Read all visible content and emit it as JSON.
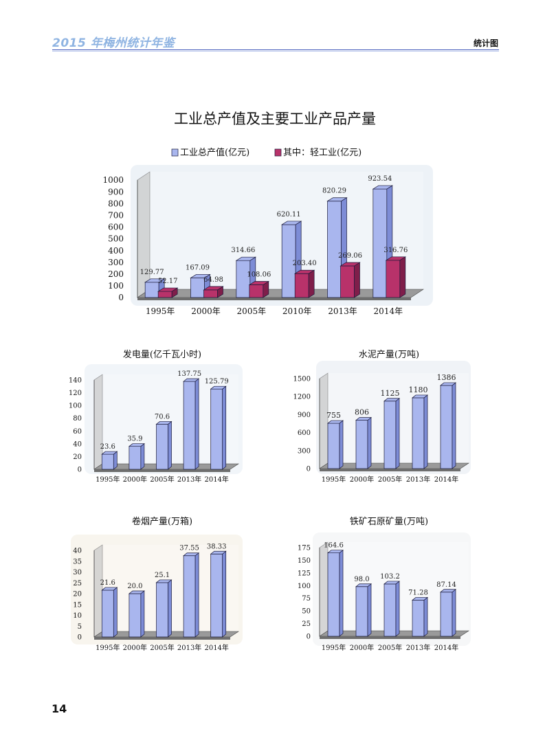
{
  "header": {
    "yearbook_title": "2015 年梅州统计年鉴",
    "section": "统计图"
  },
  "page_number": "14",
  "colors": {
    "blue_bar": "#a9b6ee",
    "blue_bar_dark": "#7d8cd6",
    "red_bar": "#b8326a",
    "red_bar_dark": "#7f1e4a",
    "header_accent": "#8fb4e2"
  },
  "chart_data": [
    {
      "id": "industry",
      "type": "bar",
      "title": "工业总产值及主要工业产品产量",
      "categories": [
        "1995年",
        "2000年",
        "2005年",
        "2010年",
        "2013年",
        "2014年"
      ],
      "series": [
        {
          "name": "工业总产值(亿元)",
          "values": [
            129.77,
            167.09,
            314.66,
            620.11,
            820.29,
            923.54
          ],
          "labels": [
            "129.77",
            "167.09",
            "314.66",
            "620.11",
            "820.29",
            "923.54"
          ]
        },
        {
          "name": "其中：轻工业(亿元)",
          "values": [
            52.17,
            64.98,
            108.06,
            203.4,
            269.06,
            316.76
          ],
          "labels": [
            "52.17",
            "64.98",
            "108.06",
            "203.40",
            "269.06",
            "316.76"
          ]
        }
      ],
      "ylim": [
        0,
        1000
      ],
      "yticks": [
        "0",
        "100",
        "200",
        "300",
        "400",
        "500",
        "600",
        "700",
        "800",
        "900",
        "1000"
      ],
      "legend": "top"
    },
    {
      "id": "electricity",
      "type": "bar",
      "title": "发电量(亿千瓦小时)",
      "categories": [
        "1995年",
        "2000年",
        "2005年",
        "2013年",
        "2014年"
      ],
      "series": [
        {
          "values": [
            23.6,
            35.9,
            70.6,
            137.75,
            125.79
          ],
          "labels": [
            "23.6",
            "35.9",
            "70.6",
            "137.75",
            "125.79"
          ]
        }
      ],
      "ylim": [
        0,
        140
      ],
      "yticks": [
        "0",
        "20",
        "40",
        "60",
        "80",
        "100",
        "120",
        "140"
      ]
    },
    {
      "id": "cement",
      "type": "bar",
      "title": "水泥产量(万吨)",
      "categories": [
        "1995年",
        "2000年",
        "2005年",
        "2013年",
        "2014年"
      ],
      "series": [
        {
          "values": [
            755,
            806,
            1125,
            1180,
            1386
          ],
          "labels": [
            "755",
            "806",
            "1125",
            "1180",
            "1386"
          ]
        }
      ],
      "ylim": [
        0,
        1500
      ],
      "yticks": [
        "0",
        "300",
        "600",
        "900",
        "1200",
        "1500"
      ]
    },
    {
      "id": "cigarettes",
      "type": "bar",
      "title": "卷烟产量(万箱)",
      "categories": [
        "1995年",
        "2000年",
        "2005年",
        "2013年",
        "2014年"
      ],
      "series": [
        {
          "values": [
            21.6,
            20.0,
            25.1,
            37.55,
            38.33
          ],
          "labels": [
            "21.6",
            "20.0",
            "25.1",
            "37.55",
            "38.33"
          ]
        }
      ],
      "ylim": [
        0,
        40
      ],
      "yticks": [
        "0",
        "5",
        "10",
        "15",
        "20",
        "25",
        "30",
        "35",
        "40"
      ]
    },
    {
      "id": "iron_ore",
      "type": "bar",
      "title": "铁矿石原矿量(万吨)",
      "categories": [
        "1995年",
        "2000年",
        "2005年",
        "2013年",
        "2014年"
      ],
      "series": [
        {
          "values": [
            164.6,
            98.0,
            103.2,
            71.28,
            87.14
          ],
          "labels": [
            "164.6",
            "98.0",
            "103.2",
            "71.28",
            "87.14"
          ]
        }
      ],
      "ylim": [
        0,
        175
      ],
      "yticks": [
        "0",
        "25",
        "50",
        "75",
        "100",
        "125",
        "150",
        "175"
      ]
    }
  ]
}
